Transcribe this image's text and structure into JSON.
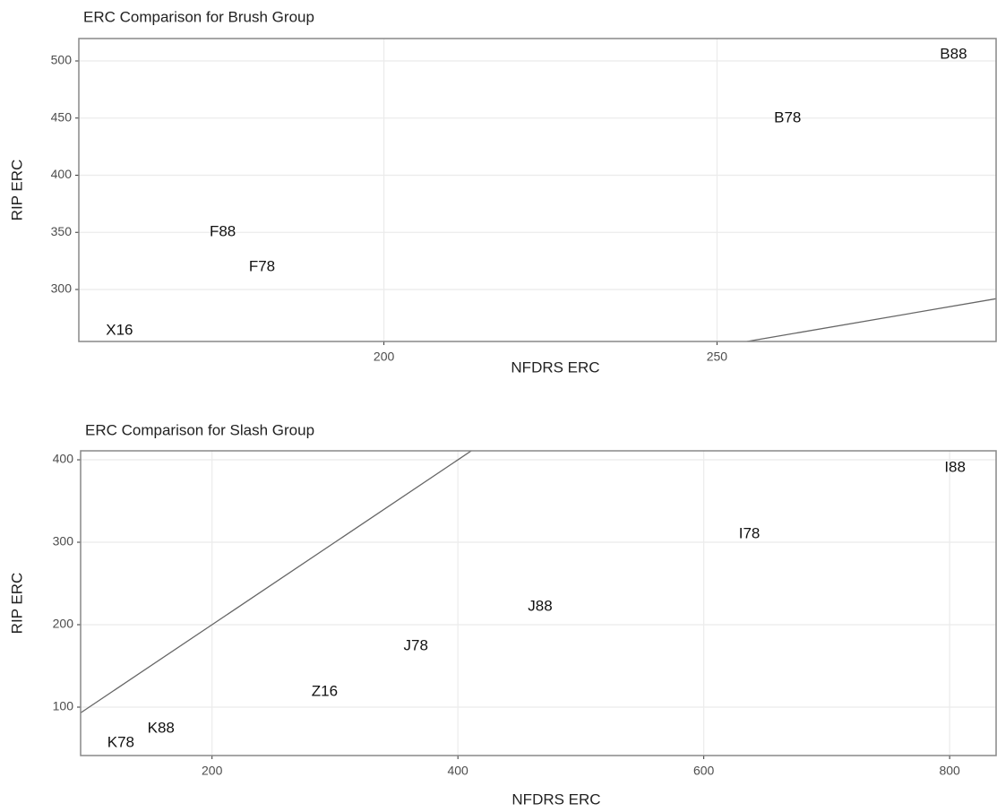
{
  "chart_data": [
    {
      "type": "scatter",
      "title": "ERC Comparison for Brush Group",
      "x_label": "NFDRS ERC",
      "y_label": "RIP ERC",
      "labels": [
        "B88",
        "B78",
        "F88",
        "F78",
        "X16"
      ],
      "x": [
        285.5,
        260.6,
        175.8,
        181.7,
        160.3
      ],
      "values": [
        505.5,
        449.8,
        350.2,
        319.6,
        263.9
      ],
      "xlim": [
        154.2,
        291.9
      ],
      "xticks": [
        200,
        250
      ],
      "ylim": [
        254.5,
        519.6
      ],
      "yticks": [
        300,
        350,
        400,
        450,
        500
      ],
      "grid": true
    },
    {
      "type": "scatter",
      "title": "ERC Comparison for Slash Group",
      "x_label": "NFDRS ERC",
      "y_label": "RIP ERC",
      "labels": [
        "I88",
        "I78",
        "J88",
        "J78",
        "Z16",
        "K88",
        "K78"
      ],
      "x": [
        804.4,
        637.1,
        466.9,
        365.8,
        291.6,
        158.5,
        125.8
      ],
      "values": [
        390.2,
        309.8,
        221.7,
        173.9,
        118.5,
        73.9,
        56.5
      ],
      "xlim": [
        93.1,
        837.8
      ],
      "xticks": [
        200,
        400,
        600,
        800
      ],
      "ylim": [
        41.3,
        410.9
      ],
      "yticks": [
        100,
        200,
        300,
        400
      ],
      "grid": true
    }
  ]
}
